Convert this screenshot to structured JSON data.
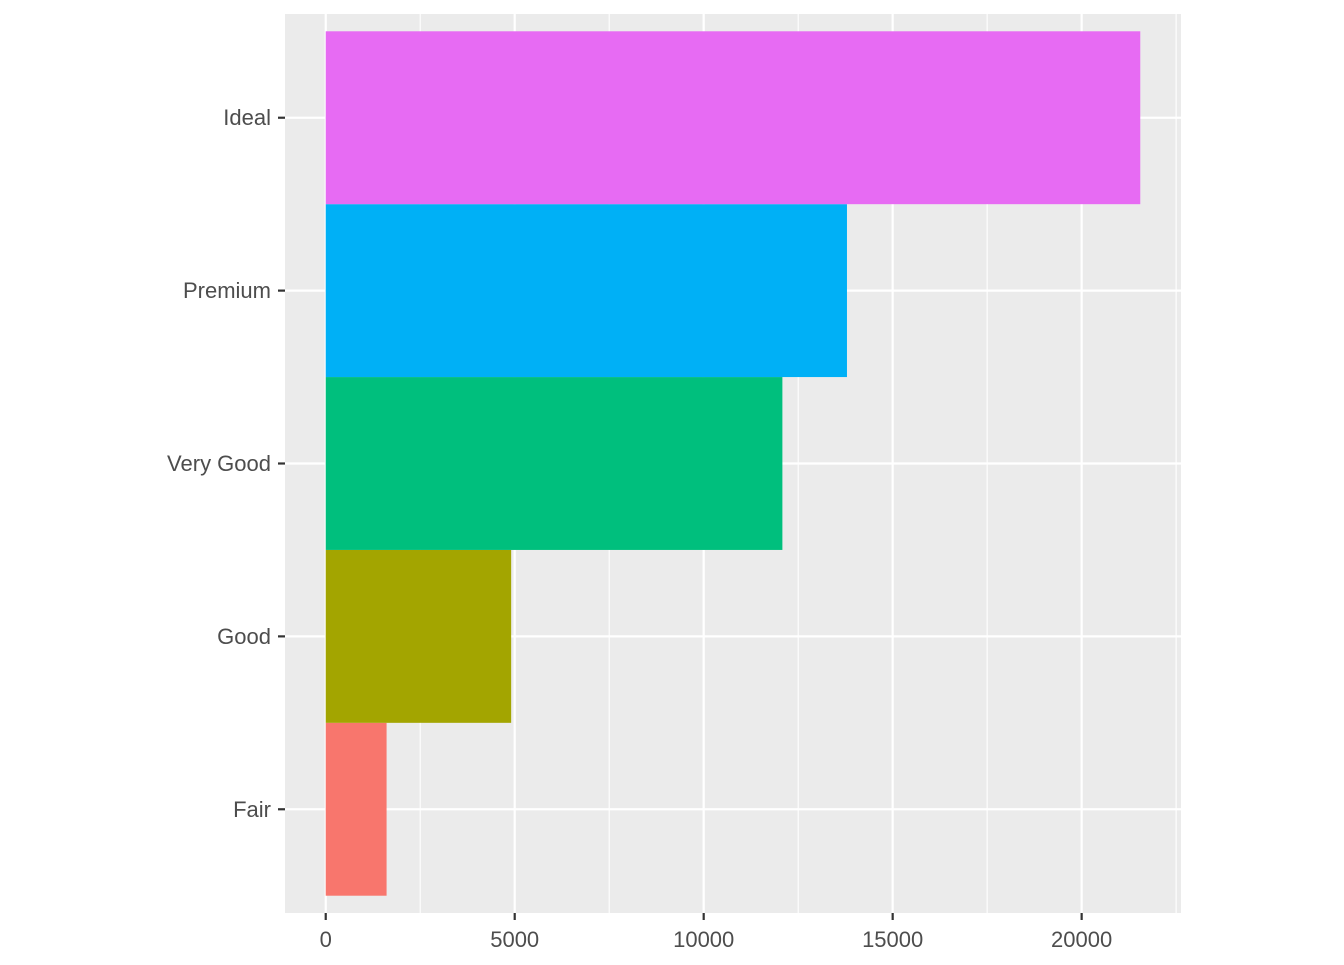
{
  "chart_data": {
    "type": "bar",
    "orientation": "horizontal",
    "categories": [
      "Fair",
      "Good",
      "Very Good",
      "Premium",
      "Ideal"
    ],
    "values": [
      1610,
      4906,
      12082,
      13791,
      21551
    ],
    "colors": [
      "#F8766D",
      "#A3A500",
      "#00BF7D",
      "#00B0F6",
      "#E76BF3"
    ],
    "xlim": [
      -1077.55,
      22628.55
    ],
    "x_ticks": [
      0,
      5000,
      10000,
      15000,
      20000
    ],
    "x_tick_labels": [
      "0",
      "5000",
      "10000",
      "15000",
      "20000"
    ],
    "title": "",
    "xlabel": "",
    "ylabel": "",
    "grid": true,
    "legend": "none",
    "panel_background": "#EBEBEB",
    "grid_color": "#FFFFFF"
  }
}
